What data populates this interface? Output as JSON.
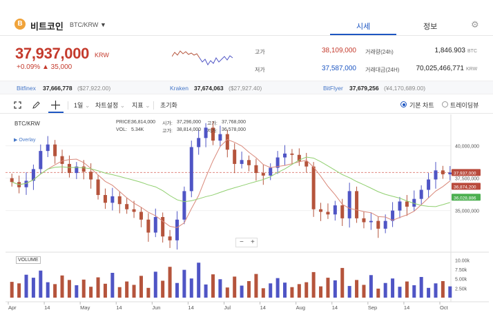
{
  "header": {
    "coin_icon": "B",
    "coin_name": "비트코인",
    "pair": "BTC/KRW",
    "caret": "▼",
    "tabs": [
      {
        "label": "시세",
        "active": true
      },
      {
        "label": "정보",
        "active": false
      }
    ],
    "settings_icon": "gear-icon"
  },
  "ticker": {
    "price": "37,937,000",
    "unit": "KRW",
    "change": "+0.09%  ▲ 35,000",
    "color_up": "#c43a2c"
  },
  "stats": {
    "high_label": "고가",
    "high": "38,109,000",
    "low_label": "저가",
    "low": "37,587,000",
    "volume_label": "거래량(24h)",
    "volume": "1,846.903",
    "volume_unit": "BTC",
    "amount_label": "거래대금(24H)",
    "amount": "70,025,466,771",
    "amount_unit": "KRW"
  },
  "exchanges": [
    {
      "name": "Bitfinex",
      "value": "37,666,778",
      "sub": "($27,922.00)"
    },
    {
      "name": "Kraken",
      "value": "37,674,063",
      "sub": "($27,927.40)"
    },
    {
      "name": "BitFlyer",
      "value": "37,679,256",
      "sub": "(¥4,170,689.00)"
    }
  ],
  "toolbar": {
    "fullscreen_icon": "expand-icon",
    "draw_icon": "pencil-icon",
    "crosshair_icon": "crosshair-icon",
    "interval": "1일",
    "chart_settings": "차트설정",
    "indicators": "지표",
    "reset": "초기화",
    "mode_basic": "기본 차트",
    "mode_trading": "트레이딩뷰"
  },
  "chart_legend": {
    "pair": "BTC/KRW",
    "overlay": "▶ Overlay",
    "price_label": "PRICE:",
    "price_value": "36,814,000",
    "vol_label": "VOL:",
    "vol_value": "5.34K",
    "open_label": "시가:",
    "open_value": "37,296,000",
    "high_label": "고가:",
    "high_value": "38,814,000",
    "close_label": "고가:",
    "close_value": "37,768,000",
    "low_label": "저가:",
    "low_value": "36,578,000",
    "volume_title": "VOLUME",
    "zoom_minus": "−",
    "zoom_plus": "+"
  },
  "chart_data": {
    "type": "candlestick",
    "x_ticks": [
      "Apr",
      "14",
      "May",
      "14",
      "Jun",
      "14",
      "Jul",
      "14",
      "Aug",
      "14",
      "Sep",
      "14",
      "Oct"
    ],
    "y_ticks": [
      "40,000,000",
      "37,500,000",
      "35,000,000"
    ],
    "y_range": [
      32000000,
      42000000
    ],
    "price_tags": [
      {
        "label": "37,937,000",
        "value": 37937000,
        "color": "#b94a3c"
      },
      {
        "label": "36,874,200",
        "value": 36874200,
        "color": "#b94a3c"
      },
      {
        "label": "36,028,886",
        "value": 36028886,
        "color": "#4caf50"
      }
    ],
    "ma_fast_color": "#d9887a",
    "ma_slow_color": "#8fcf6e",
    "volume_ticks": [
      "10.00k",
      "7.50k",
      "5.00k",
      "2.50k"
    ],
    "volume_range": [
      0,
      11000
    ],
    "closes": [
      37200000,
      36800000,
      37300000,
      38200000,
      39600000,
      40100000,
      39200000,
      38600000,
      37900000,
      38400000,
      38000000,
      37400000,
      36200000,
      35600000,
      36100000,
      35500000,
      35100000,
      34900000,
      34300000,
      33300000,
      34500000,
      33000000,
      32700000,
      34300000,
      36500000,
      39900000,
      40600000,
      41400000,
      40400000,
      40900000,
      39700000,
      38600000,
      38900000,
      38500000,
      37900000,
      37700000,
      38300000,
      39100000,
      39400000,
      39300000,
      38800000,
      38400000,
      35100000,
      34900000,
      34700000,
      35400000,
      34400000,
      36500000,
      34400000,
      34100000,
      34200000,
      33600000,
      34200000,
      35000000,
      35700000,
      35300000,
      35900000,
      36600000,
      37400000,
      38100000,
      37800000,
      37937000
    ],
    "volumes": [
      4200,
      3800,
      6100,
      5300,
      7200,
      4100,
      3600,
      5900,
      4700,
      3300,
      4800,
      2900,
      5400,
      3700,
      6600,
      2800,
      4300,
      3400,
      5800,
      2600,
      6900,
      4500,
      8200,
      3900,
      7400,
      5100,
      9300,
      3500,
      6200,
      4900,
      2700,
      5600,
      3200,
      4400,
      6300,
      2500,
      3800,
      5200,
      4000,
      2800,
      3600,
      4100,
      6800,
      3000,
      5300,
      4600,
      7900,
      3100,
      4700,
      3400,
      6000,
      2400,
      3900,
      5100,
      2900,
      4300,
      3300,
      5500,
      2600,
      3800,
      4400,
      3000
    ],
    "up_color": "#4f55c5",
    "down_color": "#b5543c"
  }
}
